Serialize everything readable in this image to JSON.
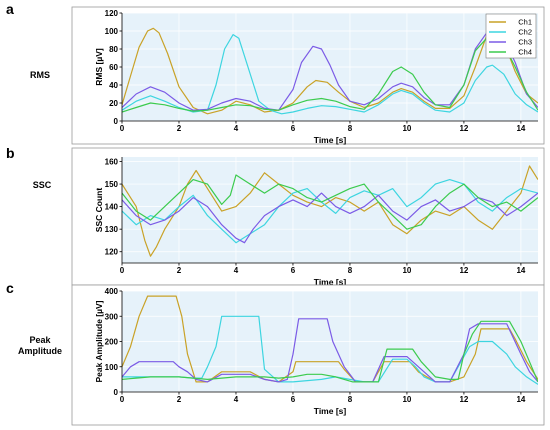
{
  "figure": {
    "panels": [
      {
        "letter": "a",
        "side_label": "RMS",
        "chart_index": 0
      },
      {
        "letter": "b",
        "side_label": "SSC",
        "chart_index": 1
      },
      {
        "letter": "c",
        "side_label": "Peak\nAmplitude",
        "chart_index": 2
      }
    ]
  },
  "colors": {
    "Ch1": "#C9A227",
    "Ch2": "#3DD5E0",
    "Ch3": "#7B5BE6",
    "Ch4": "#3CCB4E",
    "plot_bg": "#E6F2FA",
    "frame": "#999999"
  },
  "chart_data": [
    {
      "type": "line",
      "title": "",
      "xlabel": "Time [s]",
      "ylabel": "RMS [µV]",
      "xlim": [
        0,
        14.6
      ],
      "ylim": [
        0,
        120
      ],
      "xticks": [
        0,
        2,
        4,
        6,
        8,
        10,
        12,
        14
      ],
      "yticks": [
        0,
        20,
        40,
        60,
        80,
        100,
        120
      ],
      "grid": true,
      "legend": "top-right",
      "series": [
        {
          "name": "Ch1",
          "x": [
            0,
            0.3,
            0.6,
            0.9,
            1.1,
            1.3,
            1.6,
            2.0,
            2.5,
            3.0,
            3.5,
            4.0,
            4.5,
            5.0,
            5.5,
            6.0,
            6.5,
            6.8,
            7.2,
            7.6,
            8.0,
            8.5,
            9.0,
            9.5,
            9.8,
            10.2,
            10.6,
            11.0,
            11.5,
            12.0,
            12.4,
            12.8,
            13.0,
            13.4,
            13.8,
            14.2,
            14.6
          ],
          "y": [
            18,
            50,
            82,
            100,
            103,
            98,
            75,
            38,
            15,
            8,
            12,
            22,
            18,
            10,
            12,
            20,
            38,
            45,
            43,
            32,
            22,
            15,
            20,
            32,
            36,
            32,
            22,
            14,
            14,
            28,
            60,
            95,
            98,
            88,
            55,
            30,
            20
          ]
        },
        {
          "name": "Ch2",
          "x": [
            0,
            0.5,
            1.0,
            1.5,
            2.0,
            2.5,
            3.0,
            3.3,
            3.6,
            3.9,
            4.1,
            4.4,
            4.8,
            5.2,
            5.6,
            6.0,
            6.5,
            7.0,
            7.5,
            8.0,
            8.5,
            9.0,
            9.5,
            9.8,
            10.2,
            10.6,
            11.0,
            11.5,
            12.0,
            12.4,
            12.8,
            13.0,
            13.4,
            13.8,
            14.2,
            14.6
          ],
          "y": [
            12,
            22,
            28,
            22,
            15,
            10,
            12,
            40,
            80,
            96,
            92,
            62,
            22,
            12,
            8,
            10,
            14,
            17,
            16,
            13,
            10,
            18,
            30,
            34,
            30,
            20,
            12,
            10,
            20,
            45,
            60,
            62,
            52,
            30,
            18,
            10
          ]
        },
        {
          "name": "Ch3",
          "x": [
            0,
            0.5,
            1.0,
            1.5,
            2.0,
            2.5,
            3.0,
            3.5,
            4.0,
            4.5,
            5.0,
            5.5,
            6.0,
            6.3,
            6.7,
            7.0,
            7.3,
            7.6,
            8.0,
            8.5,
            9.0,
            9.5,
            9.8,
            10.2,
            10.6,
            11.0,
            11.5,
            12.0,
            12.4,
            12.8,
            13.0,
            13.4,
            13.8,
            14.2,
            14.6
          ],
          "y": [
            15,
            30,
            38,
            32,
            20,
            12,
            13,
            20,
            25,
            22,
            14,
            12,
            35,
            65,
            83,
            80,
            62,
            40,
            22,
            18,
            25,
            38,
            42,
            38,
            26,
            18,
            18,
            40,
            80,
            98,
            100,
            92,
            65,
            30,
            15
          ]
        },
        {
          "name": "Ch4",
          "x": [
            0,
            0.5,
            1.0,
            1.5,
            2.0,
            2.5,
            3.0,
            3.5,
            4.0,
            4.5,
            5.0,
            5.5,
            6.0,
            6.5,
            7.0,
            7.5,
            8.0,
            8.5,
            9.0,
            9.5,
            9.8,
            10.2,
            10.6,
            11.0,
            11.5,
            12.0,
            12.4,
            12.8,
            13.0,
            13.4,
            13.8,
            14.2,
            14.6
          ],
          "y": [
            10,
            15,
            20,
            18,
            14,
            11,
            12,
            15,
            18,
            17,
            13,
            12,
            18,
            23,
            25,
            22,
            16,
            13,
            30,
            55,
            60,
            52,
            32,
            18,
            15,
            40,
            78,
            92,
            90,
            85,
            60,
            32,
            12
          ]
        }
      ]
    },
    {
      "type": "line",
      "title": "",
      "xlabel": "Time [s]",
      "ylabel": "SSC Count",
      "xlim": [
        0,
        14.6
      ],
      "ylim": [
        115,
        162
      ],
      "xticks": [
        0,
        2,
        4,
        6,
        8,
        10,
        12,
        14
      ],
      "yticks": [
        120,
        130,
        140,
        150,
        160
      ],
      "grid": true,
      "legend": "none",
      "series": [
        {
          "name": "Ch1",
          "x": [
            0,
            0.5,
            0.8,
            1.0,
            1.2,
            1.5,
            2.0,
            2.3,
            2.6,
            3.0,
            3.5,
            4.0,
            4.5,
            5.0,
            5.5,
            6.0,
            6.5,
            7.0,
            7.5,
            8.0,
            8.5,
            9.0,
            9.5,
            10.0,
            10.5,
            11.0,
            11.5,
            12.0,
            12.5,
            13.0,
            13.5,
            14.0,
            14.3,
            14.6
          ],
          "y": [
            150,
            140,
            125,
            118,
            122,
            130,
            140,
            150,
            156,
            148,
            138,
            140,
            146,
            155,
            150,
            145,
            142,
            140,
            144,
            142,
            138,
            142,
            132,
            128,
            134,
            138,
            136,
            140,
            134,
            130,
            138,
            146,
            158,
            152
          ]
        },
        {
          "name": "Ch2",
          "x": [
            0,
            0.5,
            1.0,
            1.5,
            2.0,
            2.5,
            3.0,
            3.5,
            4.0,
            4.5,
            5.0,
            5.5,
            6.0,
            6.5,
            7.0,
            7.5,
            8.0,
            8.5,
            9.0,
            9.5,
            10.0,
            10.5,
            11.0,
            11.5,
            12.0,
            12.5,
            13.0,
            13.5,
            14.0,
            14.6
          ],
          "y": [
            138,
            132,
            136,
            134,
            140,
            145,
            136,
            130,
            124,
            128,
            132,
            140,
            146,
            148,
            142,
            137,
            144,
            147,
            145,
            148,
            140,
            144,
            150,
            152,
            150,
            142,
            138,
            144,
            148,
            146
          ]
        },
        {
          "name": "Ch3",
          "x": [
            0,
            0.5,
            1.0,
            1.5,
            2.0,
            2.5,
            3.0,
            3.5,
            4.0,
            4.3,
            4.6,
            5.0,
            5.5,
            6.0,
            6.5,
            7.0,
            7.5,
            8.0,
            8.5,
            9.0,
            9.5,
            10.0,
            10.5,
            11.0,
            11.5,
            12.0,
            12.5,
            13.0,
            13.5,
            14.0,
            14.6
          ],
          "y": [
            143,
            136,
            132,
            134,
            138,
            144,
            140,
            132,
            126,
            124,
            130,
            136,
            140,
            143,
            140,
            146,
            140,
            137,
            140,
            145,
            138,
            134,
            140,
            143,
            138,
            140,
            144,
            142,
            136,
            140,
            146
          ]
        },
        {
          "name": "Ch4",
          "x": [
            0,
            0.5,
            1.0,
            1.5,
            2.0,
            2.5,
            3.0,
            3.5,
            3.8,
            4.0,
            4.5,
            5.0,
            5.5,
            6.0,
            6.5,
            7.0,
            7.5,
            8.0,
            8.5,
            9.0,
            9.5,
            10.0,
            10.5,
            11.0,
            11.5,
            12.0,
            12.5,
            13.0,
            13.5,
            14.0,
            14.6
          ],
          "y": [
            146,
            138,
            134,
            140,
            146,
            152,
            150,
            141,
            145,
            154,
            150,
            146,
            150,
            148,
            144,
            142,
            145,
            148,
            150,
            142,
            136,
            130,
            132,
            140,
            146,
            150,
            144,
            140,
            142,
            138,
            144
          ]
        }
      ]
    },
    {
      "type": "line",
      "title": "",
      "xlabel": "Time [s]",
      "ylabel": "Peak Amplitude [µV]",
      "xlim": [
        0,
        14.6
      ],
      "ylim": [
        0,
        400
      ],
      "xticks": [
        0,
        2,
        4,
        6,
        8,
        10,
        12,
        14
      ],
      "yticks": [
        0,
        100,
        200,
        300,
        400
      ],
      "grid": true,
      "legend": "none",
      "series": [
        {
          "name": "Ch1",
          "x": [
            0,
            0.3,
            0.6,
            0.9,
            1.9,
            2.1,
            2.3,
            2.6,
            3.0,
            3.5,
            4.5,
            5.0,
            5.5,
            6.0,
            6.1,
            7.6,
            7.8,
            8.2,
            8.8,
            9.2,
            10.1,
            10.4,
            11.0,
            11.5,
            12.0,
            12.4,
            12.6,
            13.6,
            13.8,
            14.2,
            14.6
          ],
          "y": [
            100,
            180,
            300,
            380,
            380,
            300,
            150,
            40,
            40,
            80,
            80,
            50,
            40,
            80,
            120,
            120,
            90,
            40,
            40,
            120,
            120,
            80,
            40,
            40,
            60,
            150,
            250,
            250,
            210,
            120,
            50
          ]
        },
        {
          "name": "Ch2",
          "x": [
            0,
            0.5,
            1.0,
            2.0,
            2.5,
            2.8,
            3.0,
            3.3,
            3.5,
            4.8,
            5.0,
            5.5,
            6.0,
            7.0,
            7.5,
            8.0,
            8.5,
            9.0,
            9.5,
            10.0,
            10.3,
            10.6,
            11.0,
            11.5,
            12.0,
            12.2,
            12.5,
            13.0,
            13.5,
            13.8,
            14.2,
            14.6
          ],
          "y": [
            60,
            60,
            60,
            60,
            55,
            55,
            100,
            180,
            300,
            300,
            90,
            40,
            40,
            50,
            60,
            50,
            40,
            40,
            130,
            130,
            100,
            60,
            40,
            40,
            140,
            180,
            200,
            200,
            150,
            100,
            60,
            30
          ]
        },
        {
          "name": "Ch3",
          "x": [
            0,
            0.3,
            0.6,
            0.9,
            1.8,
            2.0,
            2.3,
            2.6,
            3.0,
            3.5,
            4.5,
            5.0,
            5.5,
            5.8,
            6.0,
            6.2,
            7.2,
            7.4,
            7.6,
            7.8,
            8.2,
            8.8,
            9.2,
            10.0,
            10.3,
            10.6,
            11.0,
            11.5,
            12.0,
            12.2,
            12.5,
            13.5,
            14.0,
            14.3,
            14.6
          ],
          "y": [
            60,
            100,
            120,
            120,
            120,
            100,
            80,
            50,
            40,
            70,
            70,
            50,
            40,
            50,
            150,
            290,
            290,
            200,
            150,
            100,
            40,
            40,
            140,
            140,
            110,
            80,
            40,
            40,
            150,
            250,
            270,
            270,
            150,
            80,
            40
          ]
        },
        {
          "name": "Ch4",
          "x": [
            0,
            0.5,
            1.0,
            2.0,
            2.5,
            3.0,
            3.5,
            4.0,
            5.0,
            5.5,
            6.0,
            6.5,
            7.0,
            7.5,
            7.8,
            8.1,
            8.5,
            9.0,
            9.3,
            10.2,
            10.5,
            11.0,
            11.5,
            11.8,
            12.0,
            12.3,
            12.6,
            13.6,
            14.0,
            14.3,
            14.6
          ],
          "y": [
            50,
            55,
            60,
            60,
            55,
            50,
            55,
            60,
            60,
            55,
            60,
            70,
            70,
            60,
            50,
            40,
            40,
            40,
            170,
            170,
            120,
            60,
            50,
            50,
            150,
            230,
            280,
            280,
            200,
            120,
            40
          ]
        }
      ]
    }
  ]
}
